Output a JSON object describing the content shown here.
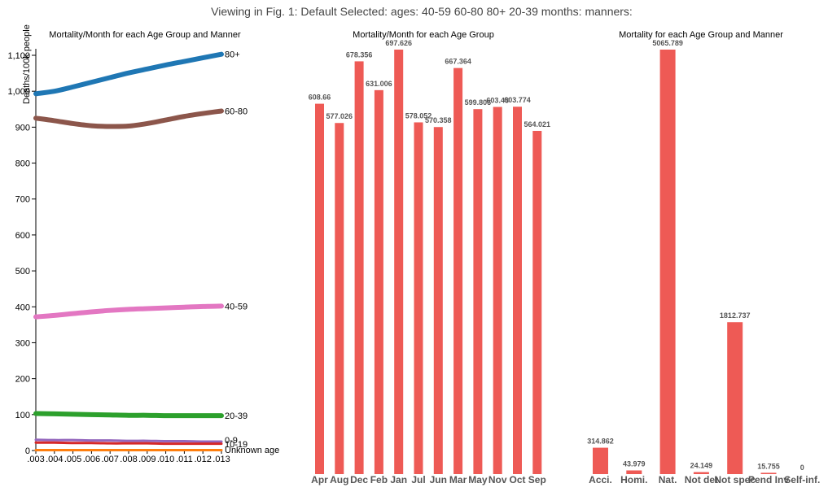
{
  "header": {
    "title": "Viewing in Fig. 1: Default Selected: ages: 40-59 60-80 80+ 20-39 months: manners:"
  },
  "chart_data": [
    {
      "type": "line",
      "title": "Mortality/Month for each Age Group and Manner",
      "ylabel": "Deaths/100k people",
      "xlabel": "",
      "x_ticks": [
        ".003",
        ".004",
        ".005",
        ".006",
        ".007",
        ".008",
        ".009",
        ".010",
        ".011",
        ".012",
        ".013"
      ],
      "y_ticks": [
        "0",
        "100",
        "200",
        "300",
        "400",
        "500",
        "600",
        "700",
        "800",
        "900",
        "1,000",
        "1,100"
      ],
      "ylim": [
        0,
        1100
      ],
      "x": [
        0.003,
        0.004,
        0.005,
        0.006,
        0.007,
        0.008,
        0.009,
        0.01,
        0.011,
        0.012,
        0.013
      ],
      "series": [
        {
          "name": "80+",
          "color": "#1f77b4",
          "values": [
            993,
            1000,
            1012,
            1025,
            1038,
            1051,
            1062,
            1073,
            1083,
            1093,
            1103
          ]
        },
        {
          "name": "60-80",
          "color": "#8c564b",
          "values": [
            925,
            918,
            910,
            904,
            902,
            903,
            910,
            920,
            930,
            938,
            945
          ]
        },
        {
          "name": "40-59",
          "color": "#e377c2",
          "values": [
            372,
            376,
            381,
            386,
            390,
            393,
            395,
            397,
            399,
            401,
            402
          ]
        },
        {
          "name": "20-39",
          "color": "#2ca02c",
          "values": [
            103,
            102,
            101,
            100,
            99,
            98,
            98,
            97,
            97,
            97,
            97
          ]
        },
        {
          "name": "0-9",
          "color": "#9467bd",
          "values": [
            30,
            29,
            29,
            28,
            28,
            27,
            27,
            26,
            26,
            25,
            25
          ]
        },
        {
          "name": "10-19",
          "color": "#d62728",
          "values": [
            22,
            22,
            21,
            21,
            20,
            20,
            20,
            19,
            19,
            19,
            19
          ]
        },
        {
          "name": "Unknown age",
          "color": "#ff7f0e",
          "values": [
            1,
            1,
            1,
            1,
            1,
            1,
            1,
            1,
            1,
            1,
            1
          ]
        }
      ]
    },
    {
      "type": "bar",
      "title": "Mortality/Month for each Age Group",
      "bar_color": "#ee5a55",
      "categories": [
        "Apr",
        "Aug",
        "Dec",
        "Feb",
        "Jan",
        "Jul",
        "Jun",
        "Mar",
        "May",
        "Nov",
        "Oct",
        "Sep"
      ],
      "values": [
        608.66,
        577.026,
        678.356,
        631.006,
        697.626,
        578.052,
        570.358,
        667.364,
        599.806,
        603.43,
        603.774,
        564.021
      ],
      "labels": [
        "608.66",
        "577.026",
        "678.356",
        "631.006",
        "697.626",
        "578.052",
        "570.358",
        "667.364",
        "599.806",
        "603.43",
        "603.774",
        "564.021"
      ],
      "ylim": [
        0,
        697.626
      ]
    },
    {
      "type": "bar",
      "title": "Mortality for each Age Group and Manner",
      "bar_color": "#ee5a55",
      "categories": [
        "Acci.",
        "Homi.",
        "Nat.",
        "Not det",
        "Not spec",
        "Pend Inv",
        "Self-inf."
      ],
      "values": [
        314.862,
        43.979,
        5065.789,
        24.149,
        1812.737,
        15.755,
        0
      ],
      "labels": [
        "314.862",
        "43.979",
        "5065.789",
        "24.149",
        "1812.737",
        "15.755",
        "0"
      ],
      "ylim": [
        0,
        5065.789
      ]
    }
  ]
}
